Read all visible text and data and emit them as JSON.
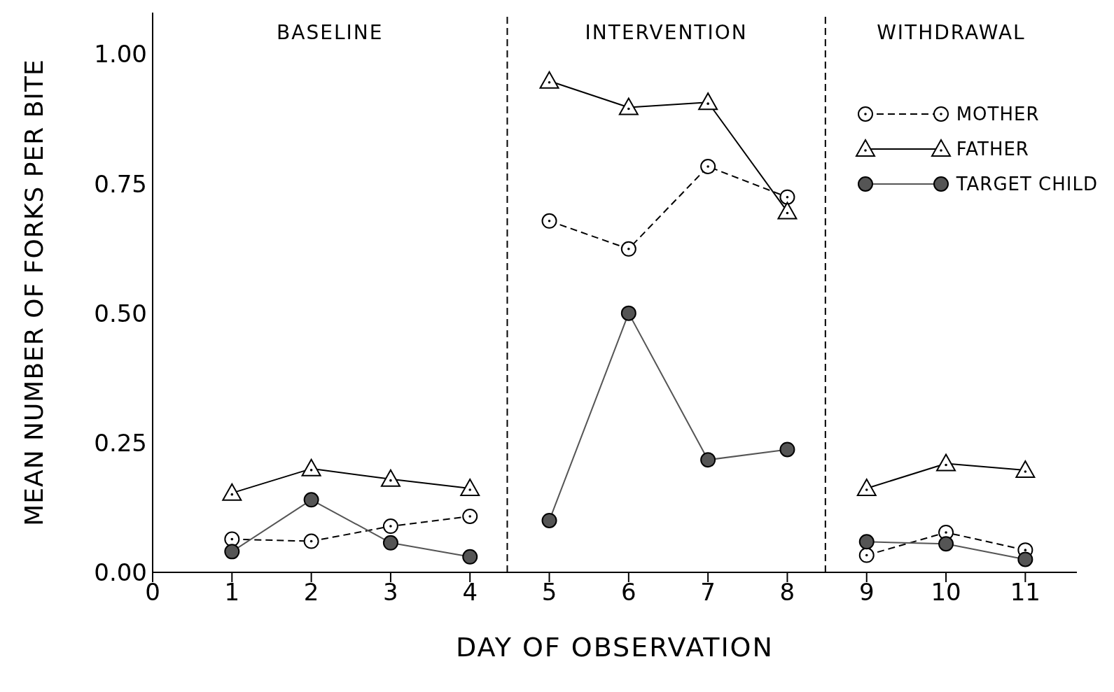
{
  "chart_data": {
    "type": "line",
    "xlabel": "DAY OF OBSERVATION",
    "ylabel": "MEAN NUMBER OF FORKS PER BITE",
    "x": [
      1,
      2,
      3,
      4,
      5,
      6,
      7,
      8,
      9,
      10,
      11
    ],
    "series": [
      {
        "name": "MOTHER",
        "color": "#000000",
        "marker": "circle",
        "line_style": "dashed",
        "values": [
          0.064,
          0.06,
          0.089,
          0.108,
          0.678,
          0.624,
          0.783,
          0.724,
          0.033,
          0.077,
          0.043
        ]
      },
      {
        "name": "FATHER",
        "color": "#000000",
        "marker": "triangle",
        "line_style": "solid",
        "values": [
          0.153,
          0.2,
          0.18,
          0.162,
          0.948,
          0.897,
          0.907,
          0.696,
          0.162,
          0.21,
          0.197
        ]
      },
      {
        "name": "TARGET CHILD",
        "color": "#555555",
        "marker": "circle",
        "line_style": "solid",
        "values": [
          0.04,
          0.14,
          0.057,
          0.03,
          0.1,
          0.5,
          0.217,
          0.237,
          0.059,
          0.055,
          0.025
        ]
      }
    ],
    "xlim": [
      0,
      11.65
    ],
    "xticks": [
      0,
      1,
      2,
      3,
      4,
      5,
      6,
      7,
      8,
      9,
      10,
      11
    ],
    "ylim": [
      0,
      1.08
    ],
    "yticks": [
      {
        "value": 0,
        "label": "0.00"
      },
      {
        "value": 0.25,
        "label": "0.25"
      },
      {
        "value": 0.5,
        "label": "0.50"
      },
      {
        "value": 0.75,
        "label": "0.75"
      },
      {
        "value": 1,
        "label": "1.00"
      }
    ],
    "ref_lines": [
      {
        "axis": "x",
        "value": 4.47,
        "line_style": "dashed"
      },
      {
        "axis": "x",
        "value": 8.48,
        "line_style": "dashed"
      }
    ],
    "annotations": [
      "BASELINE",
      "INTERVENTION",
      "WITHDRAWAL"
    ],
    "legend": "top right",
    "grid": false
  }
}
